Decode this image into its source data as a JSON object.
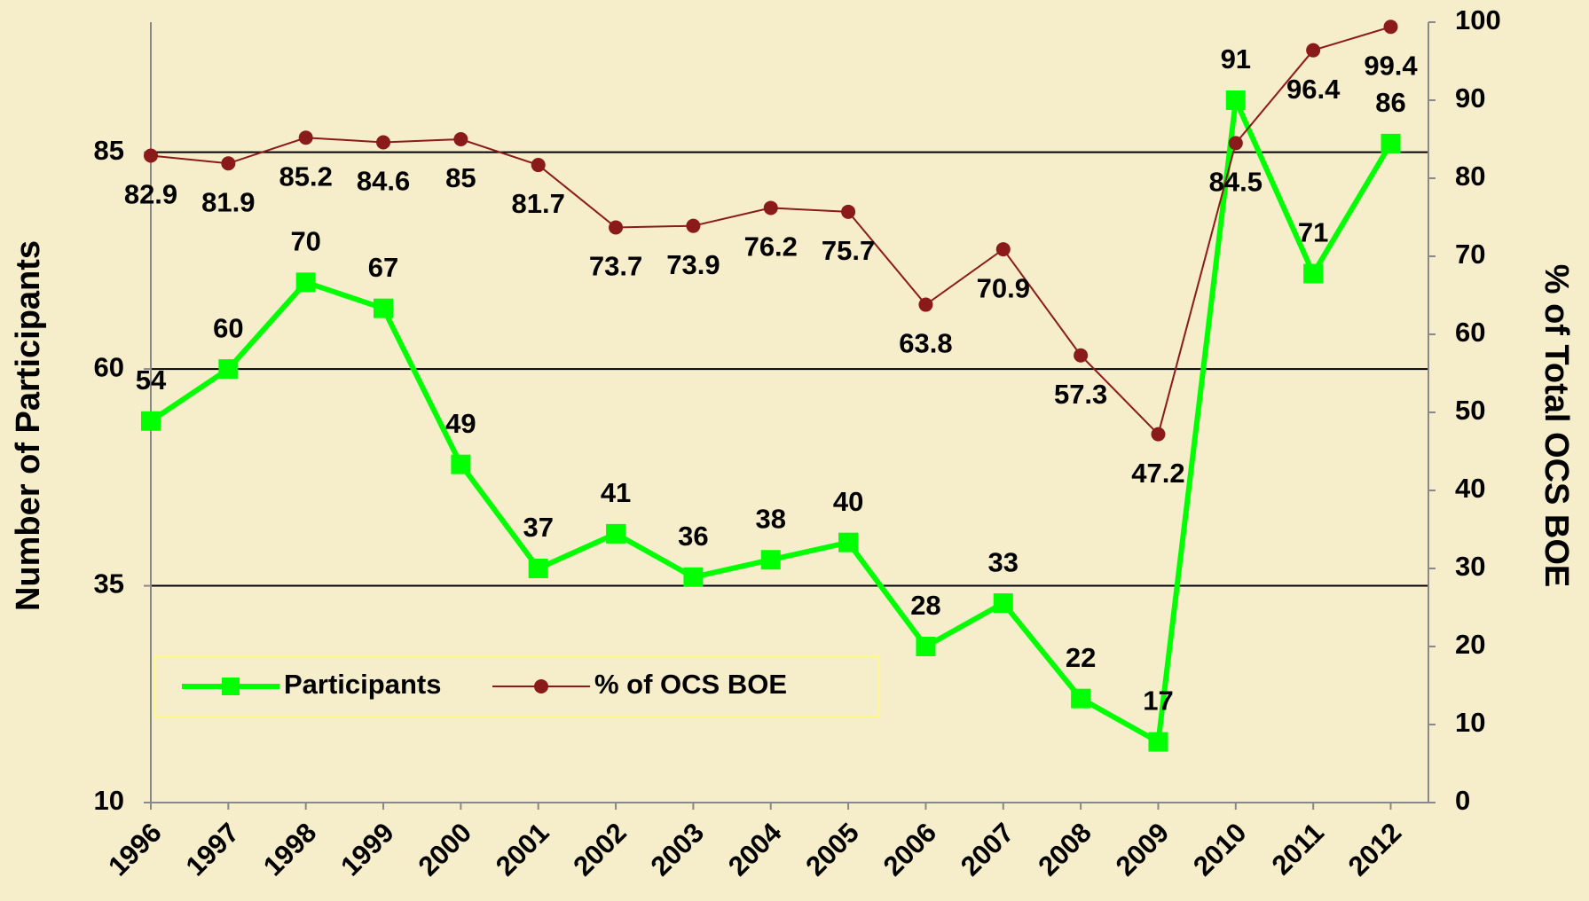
{
  "chart_data": {
    "type": "line",
    "y_label": "Number of Participants",
    "y2_label": "% of Total OCS BOE",
    "categories": [
      "1996",
      "1997",
      "1998",
      "1999",
      "2000",
      "2001",
      "2002",
      "2003",
      "2004",
      "2005",
      "2006",
      "2007",
      "2008",
      "2009",
      "2010",
      "2011",
      "2012"
    ],
    "series": [
      {
        "name": "Participants",
        "color": "#00ff00",
        "marker": "square",
        "values": [
          54,
          60,
          70,
          67,
          49,
          37,
          41,
          36,
          38,
          40,
          28,
          33,
          22,
          17,
          91,
          71,
          86
        ]
      },
      {
        "name": "% of OCS BOE",
        "color": "#8b1a1a",
        "marker": "circle",
        "axis": "y2",
        "values": [
          82.9,
          81.9,
          85.2,
          84.6,
          85,
          81.7,
          73.7,
          73.9,
          76.2,
          75.7,
          63.8,
          70.9,
          57.3,
          47.2,
          84.5,
          96.4,
          99.4
        ]
      }
    ],
    "ylim": [
      10,
      100
    ],
    "yticks": [
      10,
      35,
      60,
      85
    ],
    "y2lim": [
      0,
      100
    ],
    "y2ticks": [
      0,
      10,
      20,
      30,
      40,
      50,
      60,
      70,
      80,
      90,
      100
    ],
    "grid": true,
    "legend": "bottom-left"
  }
}
